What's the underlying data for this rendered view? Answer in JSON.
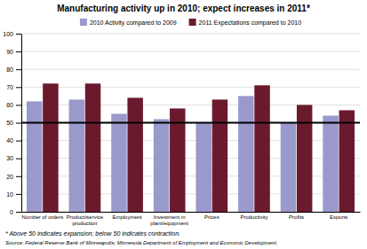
{
  "chart_data": {
    "type": "bar",
    "title": "Manufacturing activity up in 2010;  expect increases in 2011*",
    "categories": [
      "Number of orders",
      "Product/service\nproduction",
      "Employment",
      "Investment in\nplant/equipment",
      "Prices",
      "Productivity",
      "Profits",
      "Exports"
    ],
    "series": [
      {
        "name": "2010 Activity compared to 2009",
        "color": "#9999CC",
        "values": [
          62,
          63,
          55,
          52,
          50,
          65,
          50,
          54
        ]
      },
      {
        "name": "2011 Expectations compared to 2010",
        "color": "#6B1A2E",
        "values": [
          72,
          72,
          64,
          58,
          63,
          71,
          60,
          57
        ]
      }
    ],
    "ylim": [
      0,
      100
    ],
    "yticks": [
      0,
      10,
      20,
      30,
      40,
      50,
      60,
      70,
      80,
      90,
      100
    ],
    "hline": 50,
    "grid": true,
    "legend": "top",
    "annotations": [
      "* Above 50 indicates expansion; below 50 indicates contraction.",
      "Source: Federal Reserve Bank of Minneapolis;  Minnesota  Department of Employment and Economic Development."
    ]
  }
}
